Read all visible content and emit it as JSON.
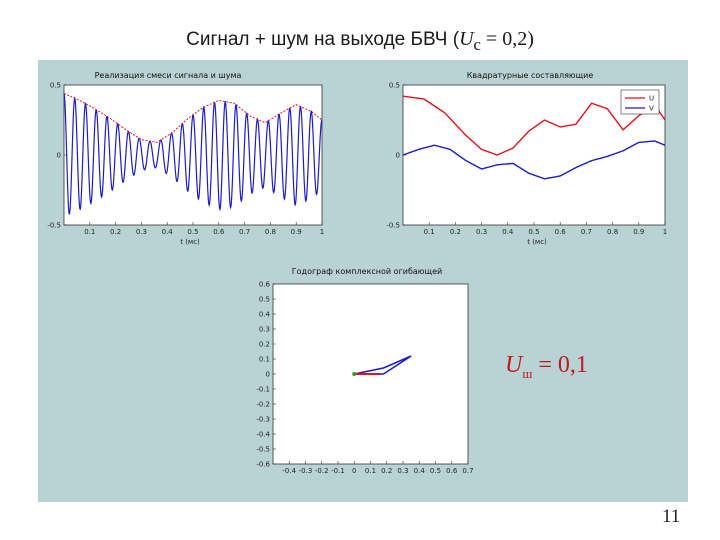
{
  "slide": {
    "title_prefix": "Сигнал + шум на выходе БВЧ (",
    "title_var": "U",
    "title_sub": "c",
    "title_suffix": " = 0,2)",
    "noise_var": "U",
    "noise_sub": "ш",
    "noise_value": " = 0,1",
    "page_number": "11"
  },
  "colors": {
    "panel": "#b9d3d4",
    "signal": "#1c1cc8",
    "envelope": "#e0141c",
    "accent": "#c0161f"
  },
  "chart_data": [
    {
      "type": "line",
      "title": "Реализация смеси сигнала и шума",
      "xlabel": "t (мс)",
      "xlim": [
        0,
        1
      ],
      "ylim": [
        -0.5,
        0.5
      ],
      "xticks": [
        "0.1",
        "0.2",
        "0.3",
        "0.4",
        "0.5",
        "0.6",
        "0.7",
        "0.8",
        "0.9",
        "1"
      ],
      "yticks": [
        "0.5",
        "0",
        "-0.5"
      ],
      "series": [
        {
          "name": "",
          "color": "#1c1cc8",
          "envelope_t": [
            0,
            0.06,
            0.12,
            0.18,
            0.24,
            0.3,
            0.36,
            0.42,
            0.48,
            0.54,
            0.6,
            0.66,
            0.72,
            0.78,
            0.84,
            0.9,
            0.96,
            1
          ],
          "envelope_a": [
            0.44,
            0.39,
            0.33,
            0.26,
            0.18,
            0.11,
            0.09,
            0.16,
            0.26,
            0.34,
            0.39,
            0.37,
            0.28,
            0.23,
            0.3,
            0.36,
            0.31,
            0.25
          ],
          "cycles": 24
        },
        {
          "name": "",
          "color": "#e0141c",
          "x": [
            0,
            0.06,
            0.12,
            0.18,
            0.24,
            0.3,
            0.36,
            0.42,
            0.48,
            0.54,
            0.6,
            0.66,
            0.72,
            0.78,
            0.84,
            0.9,
            0.96,
            1
          ],
          "y": [
            0.44,
            0.39,
            0.33,
            0.26,
            0.18,
            0.11,
            0.09,
            0.16,
            0.26,
            0.34,
            0.39,
            0.37,
            0.28,
            0.23,
            0.3,
            0.36,
            0.31,
            0.25
          ]
        }
      ]
    },
    {
      "type": "line",
      "title": "Квадратурные составляющие",
      "xlabel": "t (мс)",
      "xlim": [
        0,
        1
      ],
      "ylim": [
        -0.5,
        0.5
      ],
      "xticks": [
        "0.1",
        "0.2",
        "0.3",
        "0.4",
        "0.5",
        "0.6",
        "0.7",
        "0.8",
        "0.9",
        "1"
      ],
      "yticks": [
        "0.5",
        "0",
        "-0.5"
      ],
      "legend": "top-right",
      "series": [
        {
          "name": "U",
          "color": "#e0141c",
          "x": [
            0,
            0.08,
            0.16,
            0.24,
            0.3,
            0.36,
            0.42,
            0.48,
            0.54,
            0.6,
            0.66,
            0.72,
            0.78,
            0.84,
            0.9,
            0.96,
            1
          ],
          "y": [
            0.42,
            0.4,
            0.3,
            0.14,
            0.04,
            0.0,
            0.05,
            0.17,
            0.25,
            0.2,
            0.22,
            0.37,
            0.33,
            0.18,
            0.28,
            0.36,
            0.25
          ]
        },
        {
          "name": "V",
          "color": "#1c1cc8",
          "x": [
            0,
            0.06,
            0.12,
            0.18,
            0.24,
            0.3,
            0.36,
            0.42,
            0.48,
            0.54,
            0.6,
            0.66,
            0.72,
            0.78,
            0.84,
            0.9,
            0.96,
            1
          ],
          "y": [
            0.0,
            0.04,
            0.07,
            0.04,
            -0.04,
            -0.1,
            -0.07,
            -0.06,
            -0.13,
            -0.17,
            -0.15,
            -0.09,
            -0.04,
            -0.01,
            0.03,
            0.09,
            0.1,
            0.07
          ]
        }
      ]
    },
    {
      "type": "line",
      "title": "Годограф комплексной огибающей",
      "xlim": [
        -0.5,
        0.7
      ],
      "ylim": [
        -0.6,
        0.6
      ],
      "xticks": [
        "-0.4",
        "-0.3",
        "-0.2",
        "-0.1",
        "0",
        "0.1",
        "0.2",
        "0.3",
        "0.4",
        "0.5",
        "0.6",
        "0.7"
      ],
      "yticks": [
        "0.6",
        "0.5",
        "0.4",
        "0.3",
        "0.2",
        "0.1",
        "0",
        "-0.1",
        "-0.2",
        "-0.3",
        "-0.4",
        "-0.5",
        "-0.6"
      ],
      "series": [
        {
          "name": "",
          "color": "#1c1cc8",
          "x": [
            0,
            0.18,
            0.35,
            0.18,
            0
          ],
          "y": [
            0,
            0,
            0.12,
            0.04,
            0
          ]
        },
        {
          "name": "",
          "color": "#e0141c",
          "x": [
            0,
            0.16
          ],
          "y": [
            0,
            0
          ]
        }
      ]
    }
  ]
}
